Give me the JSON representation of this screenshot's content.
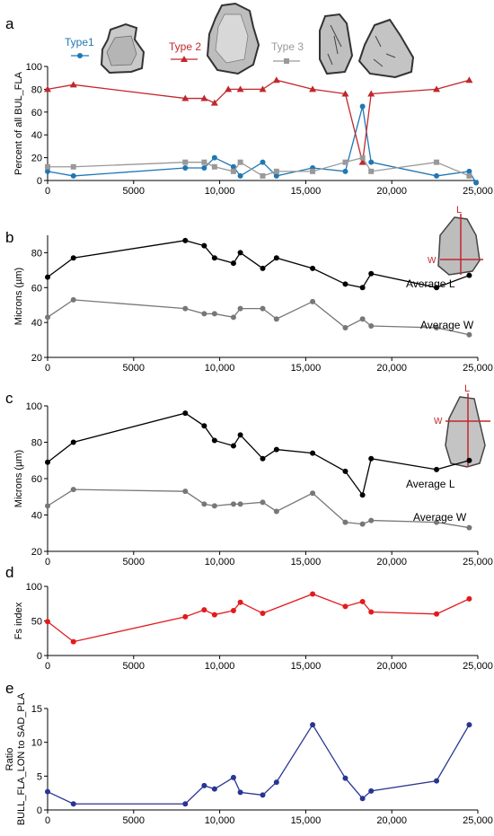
{
  "chart_data": [
    {
      "panel": "a",
      "type": "line",
      "ylabel": "Percent of all BUL_FLA",
      "ylim": [
        0,
        100
      ],
      "yticks": [
        0,
        20,
        40,
        60,
        80,
        100
      ],
      "xlim": [
        0,
        25000
      ],
      "xticks": [
        0,
        5000,
        10000,
        15000,
        20000,
        25000
      ],
      "xticklabels": [
        "0",
        "5000",
        "10,000",
        "15,000",
        "20,000",
        "25,000"
      ],
      "legend_position": "top",
      "series": [
        {
          "name": "Type1",
          "color": "#1f77b4",
          "marker": "circle",
          "x": [
            0,
            1500,
            8000,
            9100,
            9700,
            10800,
            11200,
            12500,
            13300,
            15400,
            17300,
            18300,
            18800,
            22600,
            24500,
            24900
          ],
          "y": [
            8,
            4,
            11,
            11,
            20,
            12,
            4,
            16,
            4,
            11,
            8,
            65,
            16,
            4,
            8,
            -2
          ]
        },
        {
          "name": "Type 2",
          "color": "#c1272d",
          "marker": "triangle",
          "x": [
            0,
            1500,
            8000,
            9100,
            9700,
            10500,
            11200,
            12500,
            13300,
            15400,
            17300,
            18300,
            18800,
            22600,
            24500
          ],
          "y": [
            80,
            84,
            72,
            72,
            68,
            80,
            80,
            80,
            88,
            80,
            76,
            16,
            76,
            80,
            88
          ]
        },
        {
          "name": "Type 3",
          "color": "#999999",
          "marker": "square",
          "x": [
            0,
            1500,
            8000,
            9100,
            9700,
            10800,
            11200,
            12500,
            13300,
            15400,
            17300,
            18300,
            18800,
            22600,
            24500
          ],
          "y": [
            12,
            12,
            16,
            16,
            12,
            8,
            16,
            4,
            8,
            8,
            16,
            20,
            8,
            16,
            4
          ]
        }
      ]
    },
    {
      "panel": "b",
      "type": "line",
      "ylabel": "Microns (µm)",
      "ylim": [
        20,
        90
      ],
      "yticks": [
        20,
        40,
        60,
        80
      ],
      "xlim": [
        0,
        25000
      ],
      "xticks": [
        0,
        5000,
        10000,
        15000,
        20000,
        25000
      ],
      "xticklabels": [
        "0",
        "5000",
        "10,000",
        "15,000",
        "20,000",
        "25,000"
      ],
      "series": [
        {
          "name": "Average L",
          "color": "#000000",
          "x": [
            0,
            1500,
            8000,
            9100,
            9700,
            10800,
            11200,
            12500,
            13300,
            15400,
            17300,
            18300,
            18800,
            22600,
            24500
          ],
          "y": [
            66,
            77,
            87,
            84,
            77,
            74,
            80,
            71,
            77,
            71,
            62,
            60,
            68,
            60,
            67
          ]
        },
        {
          "name": "Average W",
          "color": "#777777",
          "x": [
            0,
            1500,
            8000,
            9100,
            9700,
            10800,
            11200,
            12500,
            13300,
            15400,
            17300,
            18300,
            18800,
            22600,
            24500
          ],
          "y": [
            43,
            53,
            48,
            45,
            45,
            43,
            48,
            48,
            42,
            52,
            37,
            42,
            38,
            37,
            33
          ]
        }
      ],
      "inset": {
        "labels": [
          "L",
          "W"
        ]
      }
    },
    {
      "panel": "c",
      "type": "line",
      "ylabel": "Microns (µm)",
      "ylim": [
        20,
        100
      ],
      "yticks": [
        20,
        40,
        60,
        80,
        100
      ],
      "xlim": [
        0,
        25000
      ],
      "xticks": [
        0,
        5000,
        10000,
        15000,
        20000,
        25000
      ],
      "xticklabels": [
        "0",
        "5000",
        "10,000",
        "15,000",
        "20,000",
        "25,000"
      ],
      "series": [
        {
          "name": "Average L",
          "color": "#000000",
          "x": [
            0,
            1500,
            8000,
            9100,
            9700,
            10800,
            11200,
            12500,
            13300,
            15400,
            17300,
            18300,
            18800,
            22600,
            24500
          ],
          "y": [
            69,
            80,
            96,
            89,
            81,
            78,
            84,
            71,
            76,
            74,
            64,
            51,
            71,
            65,
            70
          ]
        },
        {
          "name": "Average W",
          "color": "#777777",
          "x": [
            0,
            1500,
            8000,
            9100,
            9700,
            10800,
            11200,
            12500,
            13300,
            15400,
            17300,
            18300,
            18800,
            22600,
            24500
          ],
          "y": [
            45,
            54,
            53,
            46,
            45,
            46,
            46,
            47,
            42,
            52,
            36,
            35,
            37,
            36,
            33
          ]
        }
      ],
      "inset": {
        "labels": [
          "L",
          "W"
        ]
      }
    },
    {
      "panel": "d",
      "type": "line",
      "ylabel": "Fs index",
      "ylim": [
        0,
        100
      ],
      "yticks": [
        0,
        50,
        100
      ],
      "xlim": [
        0,
        25000
      ],
      "xticks": [
        0,
        5000,
        10000,
        15000,
        20000,
        25000
      ],
      "xticklabels": [
        "0",
        "5000",
        "10,000",
        "15,000",
        "20,000",
        "25,000"
      ],
      "series": [
        {
          "name": "",
          "color": "#e31a1c",
          "x": [
            0,
            1500,
            8000,
            9100,
            9700,
            10800,
            11200,
            12500,
            15400,
            17300,
            18300,
            18800,
            22600,
            24500
          ],
          "y": [
            49,
            20,
            56,
            66,
            59,
            65,
            77,
            61,
            89,
            71,
            78,
            63,
            60,
            82
          ]
        }
      ]
    },
    {
      "panel": "e",
      "type": "line",
      "ylabel": "Ratio BULL_FLA_LON to SAD_PLA",
      "ylabel_lines": [
        "Ratio",
        "BULL_FLA_LON to SAD_PLA"
      ],
      "ylim": [
        0,
        15
      ],
      "yticks": [
        0,
        5,
        10,
        15
      ],
      "xlim": [
        0,
        25000
      ],
      "xticks": [
        0,
        5000,
        10000,
        15000,
        20000,
        25000
      ],
      "xticklabels": [
        "0",
        "5000",
        "10,000",
        "15,000",
        "20,000",
        "25,000"
      ],
      "series": [
        {
          "name": "",
          "color": "#283593",
          "x": [
            0,
            1500,
            8000,
            9100,
            9700,
            10800,
            11200,
            12500,
            13300,
            15400,
            17300,
            18300,
            18800,
            22600,
            24500
          ],
          "y": [
            2.7,
            0.9,
            0.9,
            3.6,
            3.1,
            4.8,
            2.6,
            2.2,
            4.1,
            12.6,
            4.7,
            1.7,
            2.8,
            4.3,
            12.6
          ]
        }
      ]
    }
  ]
}
